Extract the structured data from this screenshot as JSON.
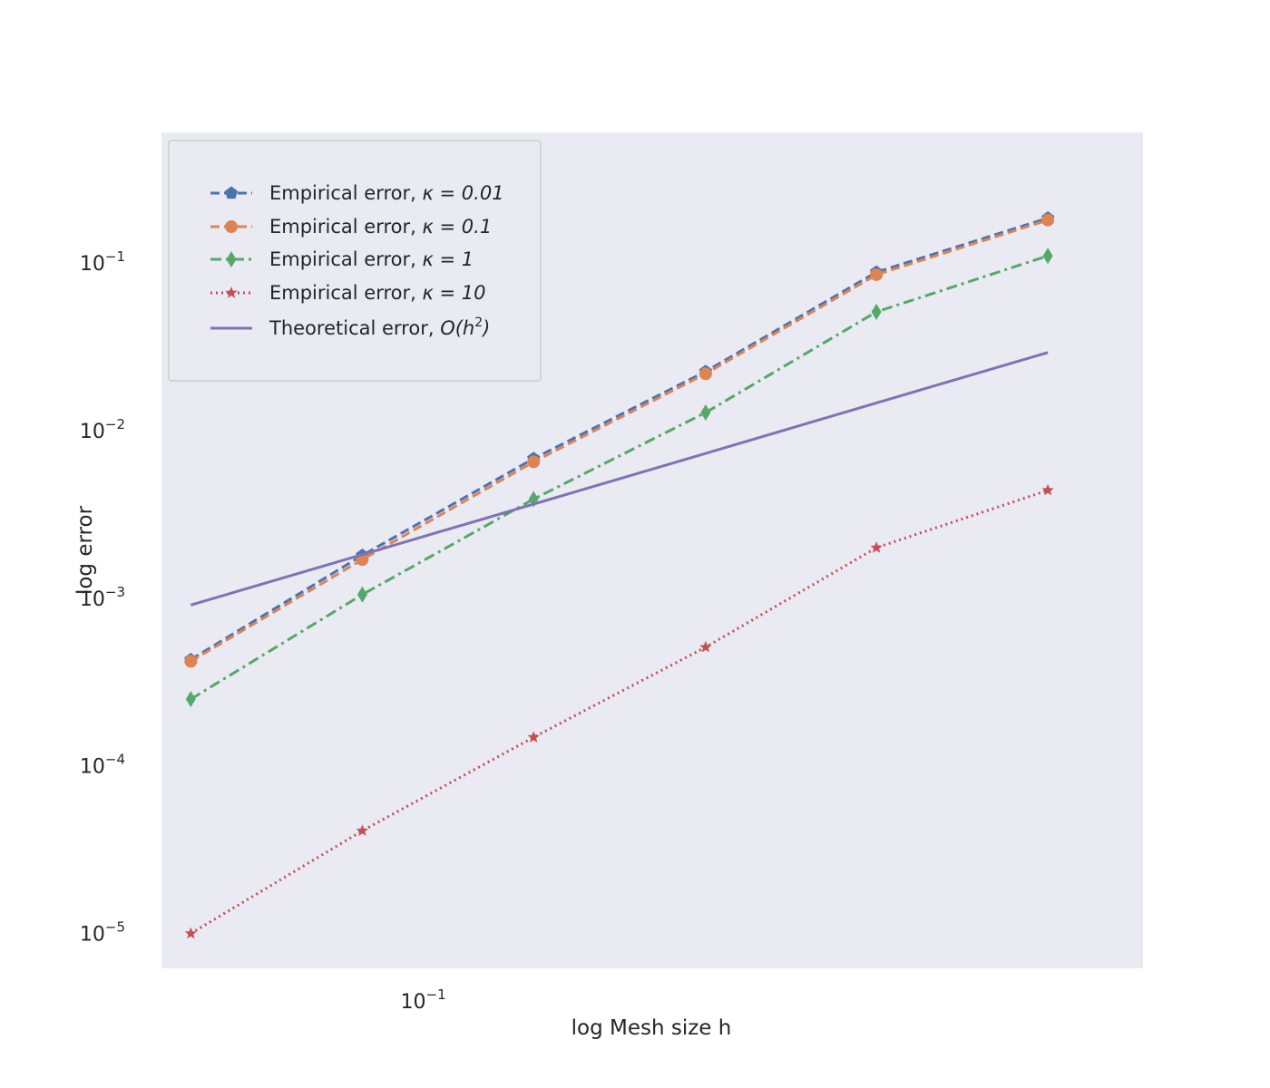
{
  "chart_data": {
    "type": "line",
    "xscale": "log",
    "yscale": "log",
    "x": [
      0.0625,
      0.0884,
      0.125,
      0.177,
      0.25,
      0.3536
    ],
    "xlim": [
      0.0589,
      0.4286
    ],
    "ylim": [
      6.2e-06,
      0.6
    ],
    "xlabel": "log Mesh size h",
    "ylabel": "log error",
    "x_ticks": [
      {
        "value": 0.1,
        "base": "10",
        "exp": "−1"
      }
    ],
    "y_ticks": [
      {
        "value": 0.1,
        "base": "10",
        "exp": "−1"
      },
      {
        "value": 0.01,
        "base": "10",
        "exp": "−2"
      },
      {
        "value": 0.001,
        "base": "10",
        "exp": "−3"
      },
      {
        "value": 0.0001,
        "base": "10",
        "exp": "−4"
      },
      {
        "value": 1e-05,
        "base": "10",
        "exp": "−5"
      }
    ],
    "grid": false,
    "background": "#EAEAF2",
    "legend_position": "top-left",
    "series": [
      {
        "label_main": "Empirical error, ",
        "label_math": "κ = 0.01",
        "color": "#4C72B0",
        "dash": "10,5",
        "marker": "pentagon",
        "values": [
          0.00043,
          0.0018,
          0.0068,
          0.0225,
          0.088,
          0.185
        ]
      },
      {
        "label_main": "Empirical error, ",
        "label_math": "κ = 0.1",
        "color": "#DD8452",
        "dash": "10,5",
        "marker": "circle",
        "values": [
          0.00042,
          0.0017,
          0.0065,
          0.0218,
          0.085,
          0.18
        ]
      },
      {
        "label_main": "Empirical error, ",
        "label_math": "κ = 1",
        "color": "#55A868",
        "dash": "12,5,3,5",
        "marker": "diamond",
        "values": [
          0.00025,
          0.00105,
          0.0039,
          0.0128,
          0.051,
          0.11
        ]
      },
      {
        "label_main": "Empirical error, ",
        "label_math": "κ = 10",
        "color": "#C44E52",
        "dash": "2,4",
        "marker": "star",
        "values": [
          1e-05,
          4.1e-05,
          0.000148,
          0.00051,
          0.002,
          0.0044
        ]
      },
      {
        "label_main": "Theoretical error, ",
        "label_math": "O(h",
        "label_sup": "2",
        "label_tail": ")",
        "color": "#8172B3",
        "dash": "",
        "marker": "none",
        "values": [
          0.00091,
          0.00182,
          0.00364,
          0.0073,
          0.0146,
          0.0292
        ],
        "x_override": [
          0.0625,
          0.0884,
          0.125,
          0.177,
          0.25,
          0.3536
        ]
      }
    ]
  }
}
